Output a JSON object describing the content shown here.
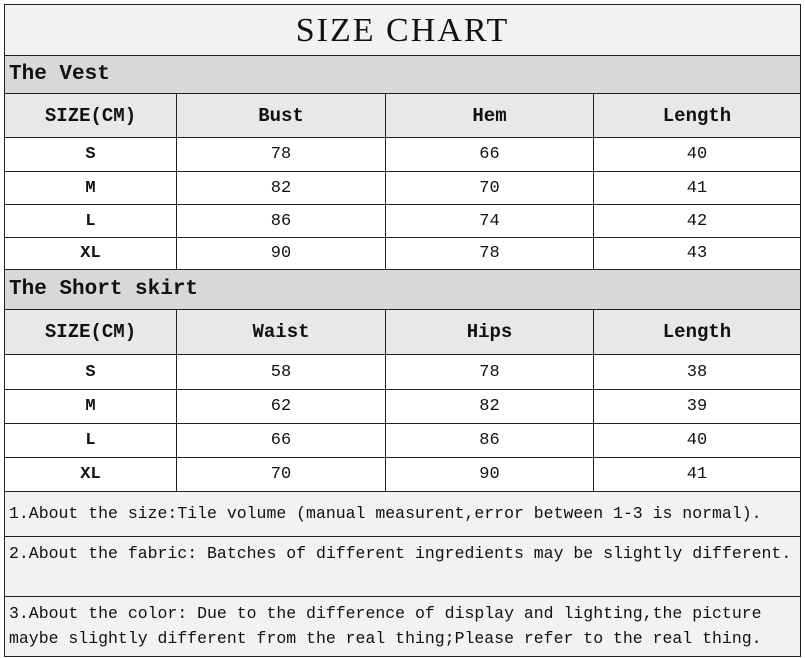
{
  "title": "SIZE CHART",
  "tables": [
    {
      "name": "The Vest",
      "headers": [
        "SIZE(CM)",
        "Bust",
        "Hem",
        "Length"
      ],
      "rows": [
        [
          "S",
          "78",
          "66",
          "40"
        ],
        [
          "M",
          "82",
          "70",
          "41"
        ],
        [
          "L",
          "86",
          "74",
          "42"
        ],
        [
          "XL",
          "90",
          "78",
          "43"
        ]
      ]
    },
    {
      "name": "The Short skirt",
      "headers": [
        "SIZE(CM)",
        "Waist",
        "Hips",
        "Length"
      ],
      "rows": [
        [
          "S",
          "58",
          "78",
          "38"
        ],
        [
          "M",
          "62",
          "82",
          "39"
        ],
        [
          "L",
          "66",
          "86",
          "40"
        ],
        [
          "XL",
          "70",
          "90",
          "41"
        ]
      ]
    }
  ],
  "notes": [
    "1.About the size:Tile volume (manual measurent,error between 1-3 is normal).",
    "2.About the fabric: Batches of different ingredients may be slightly different.",
    "3.About the color: Due to the difference of display and lighting,the picture maybe slightly different from the real thing;Please refer to the real thing."
  ]
}
